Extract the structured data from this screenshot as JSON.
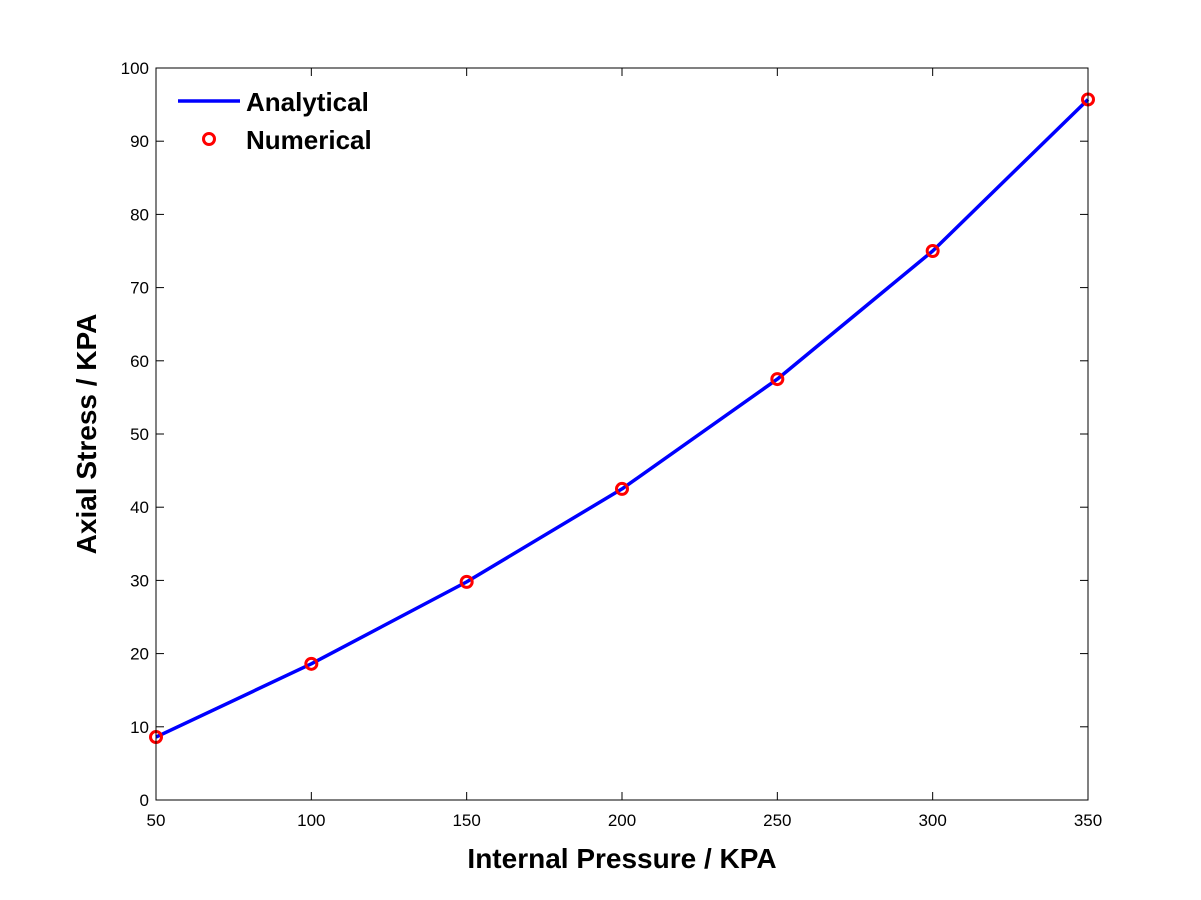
{
  "chart_data": {
    "type": "line",
    "title": "",
    "xlabel": "Internal Pressure / KPA",
    "ylabel": "Axial Stress / KPA",
    "xlim": [
      50,
      350
    ],
    "ylim": [
      0,
      100
    ],
    "xticks": [
      "50",
      "100",
      "150",
      "200",
      "250",
      "300",
      "350"
    ],
    "yticks": [
      "0",
      "10",
      "20",
      "30",
      "40",
      "50",
      "60",
      "70",
      "80",
      "90",
      "100"
    ],
    "grid": false,
    "legend_position": "top-left",
    "series": [
      {
        "name": "Analytical",
        "style": "line",
        "color": "#0000ff",
        "x": [
          50,
          100,
          150,
          200,
          250,
          300,
          350
        ],
        "y": [
          8.6,
          18.6,
          29.8,
          42.5,
          57.5,
          75.0,
          95.7
        ]
      },
      {
        "name": "Numerical",
        "style": "marker-circle",
        "color": "#ff0000",
        "x": [
          50,
          100,
          150,
          200,
          250,
          300,
          350
        ],
        "y": [
          8.6,
          18.6,
          29.8,
          42.5,
          57.5,
          75.0,
          95.7
        ]
      }
    ]
  }
}
